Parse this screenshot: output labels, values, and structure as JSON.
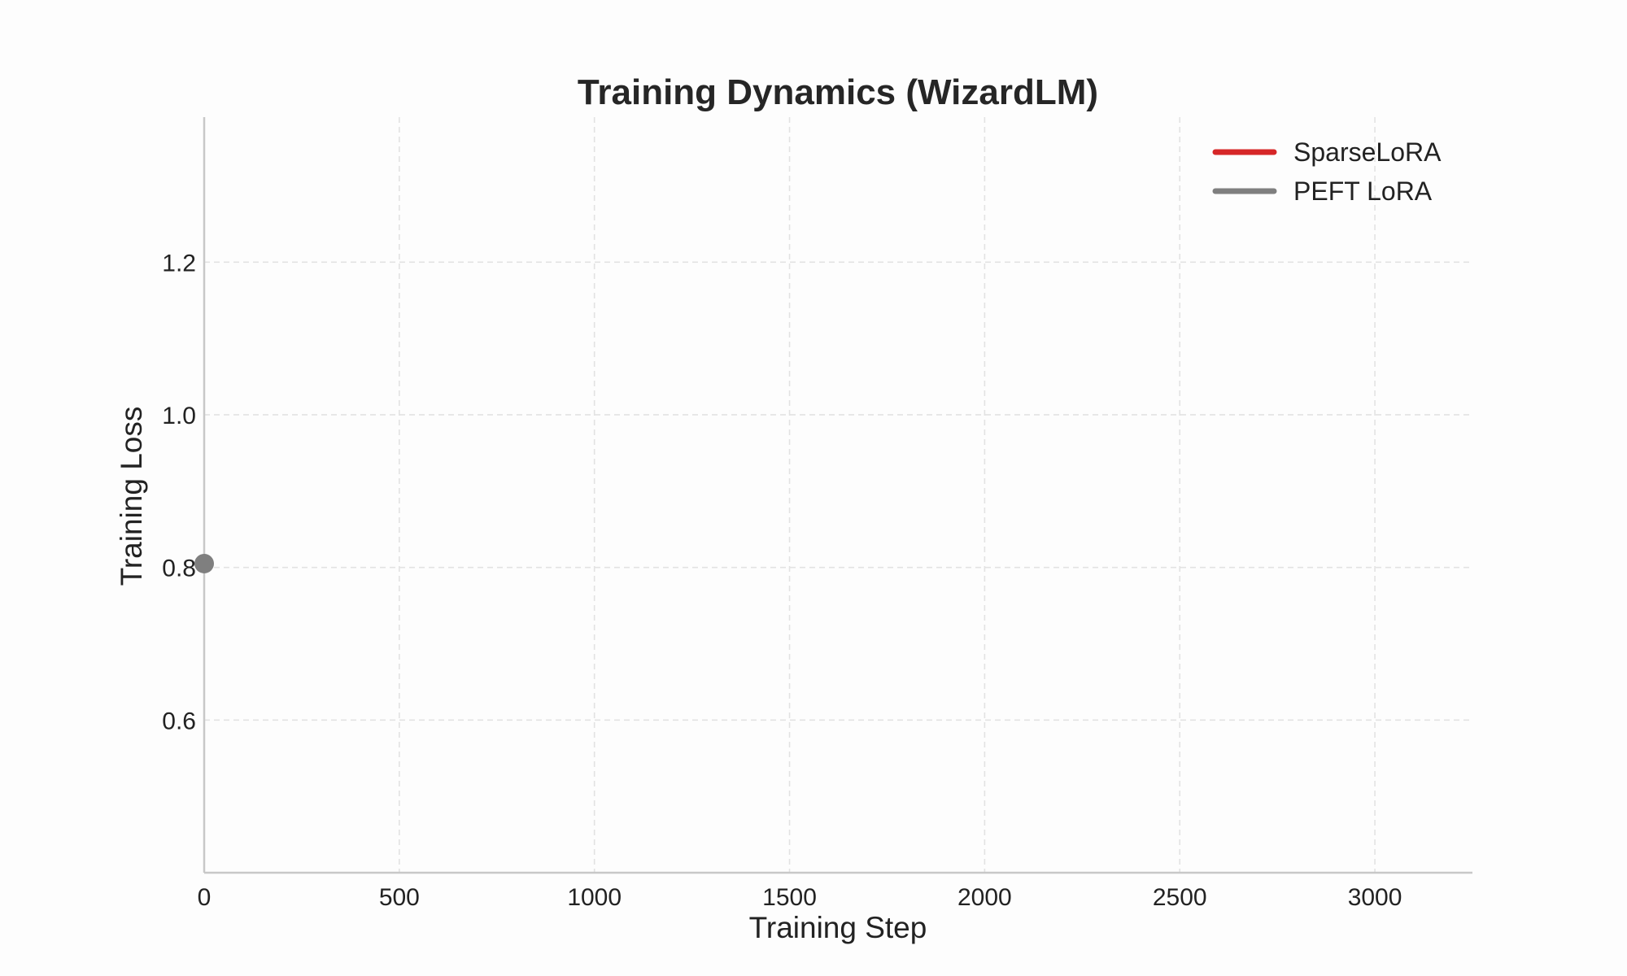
{
  "chart_data": {
    "type": "line",
    "title": "Training Dynamics (WizardLM)",
    "xlabel": "Training Step",
    "ylabel": "Training Loss",
    "xlim": [
      0,
      3250
    ],
    "ylim": [
      0.4,
      1.39
    ],
    "x_ticks": [
      0,
      500,
      1000,
      1500,
      2000,
      2500,
      3000
    ],
    "x_tick_labels": [
      "0",
      "500",
      "1000",
      "1500",
      "2000",
      "2500",
      "3000"
    ],
    "y_ticks": [
      0.6,
      0.8,
      1.0,
      1.2
    ],
    "y_tick_labels": [
      "0.6",
      "0.8",
      "1.0",
      "1.2"
    ],
    "grid": true,
    "legend_position": "top-right",
    "series": [
      {
        "name": "SparseLoRA",
        "color": "#d62728",
        "points": []
      },
      {
        "name": "PEFT LoRA",
        "color": "#7f7f7f",
        "points": [
          {
            "x": 0,
            "y": 0.805
          }
        ]
      }
    ]
  }
}
